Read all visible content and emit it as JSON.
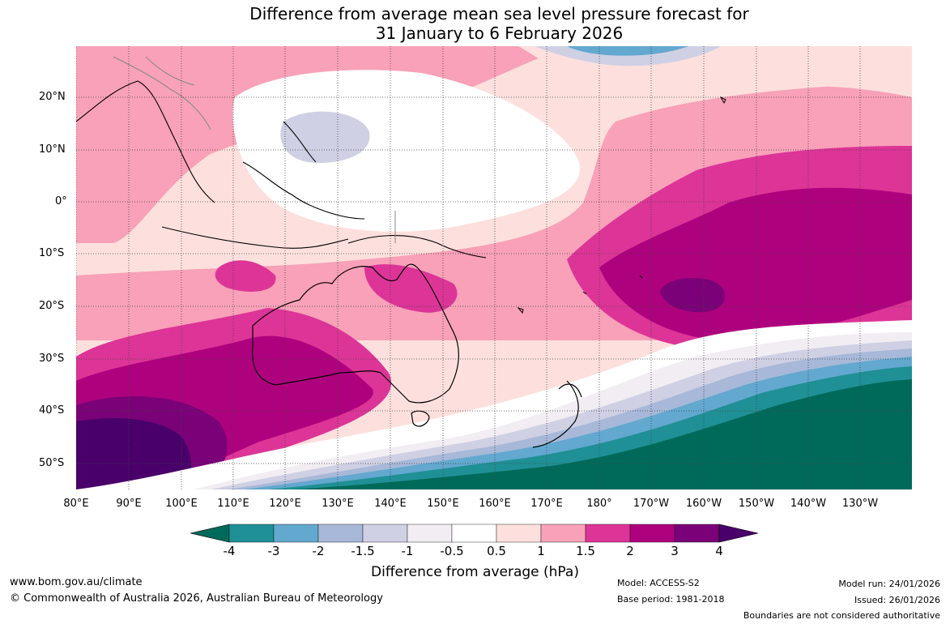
{
  "title": {
    "line1": "Difference from average mean sea level pressure forecast for",
    "line2": "31 January to 6 February 2026"
  },
  "lat_labels": [
    "20°N",
    "10°N",
    "0°",
    "10°S",
    "20°S",
    "30°S",
    "40°S",
    "50°S"
  ],
  "lon_labels": [
    "80°E",
    "90°E",
    "100°E",
    "110°E",
    "120°E",
    "130°E",
    "140°E",
    "150°E",
    "160°E",
    "170°E",
    "180°",
    "170°W",
    "160°W",
    "150°W",
    "140°W",
    "130°W"
  ],
  "colorbar": {
    "title": "Difference from average (hPa)",
    "labels": [
      "-4",
      "-3",
      "-2",
      "-1.5",
      "-1",
      "-0.5",
      "0.5",
      "1",
      "1.5",
      "2",
      "3",
      "4"
    ],
    "colors": [
      "#006a5a",
      "#1f9095",
      "#62a8cf",
      "#a7b8d8",
      "#cfd0e4",
      "#f1edf3",
      "#ffffff",
      "#fde0dd",
      "#f8a1b8",
      "#dd3497",
      "#ae017e",
      "#7a0177",
      "#49006a"
    ]
  },
  "footer": {
    "website": "www.bom.gov.au/climate",
    "copyright": "© Commonwealth of Australia 2026, Australian Bureau of Meteorology",
    "model": "Model: ACCESS-S2",
    "base_period": "Base period: 1981-2018",
    "model_run": "Model run: 24/01/2026",
    "issued": "Issued: 26/01/2026",
    "disclaimer": "Boundaries are not considered authoritative"
  }
}
